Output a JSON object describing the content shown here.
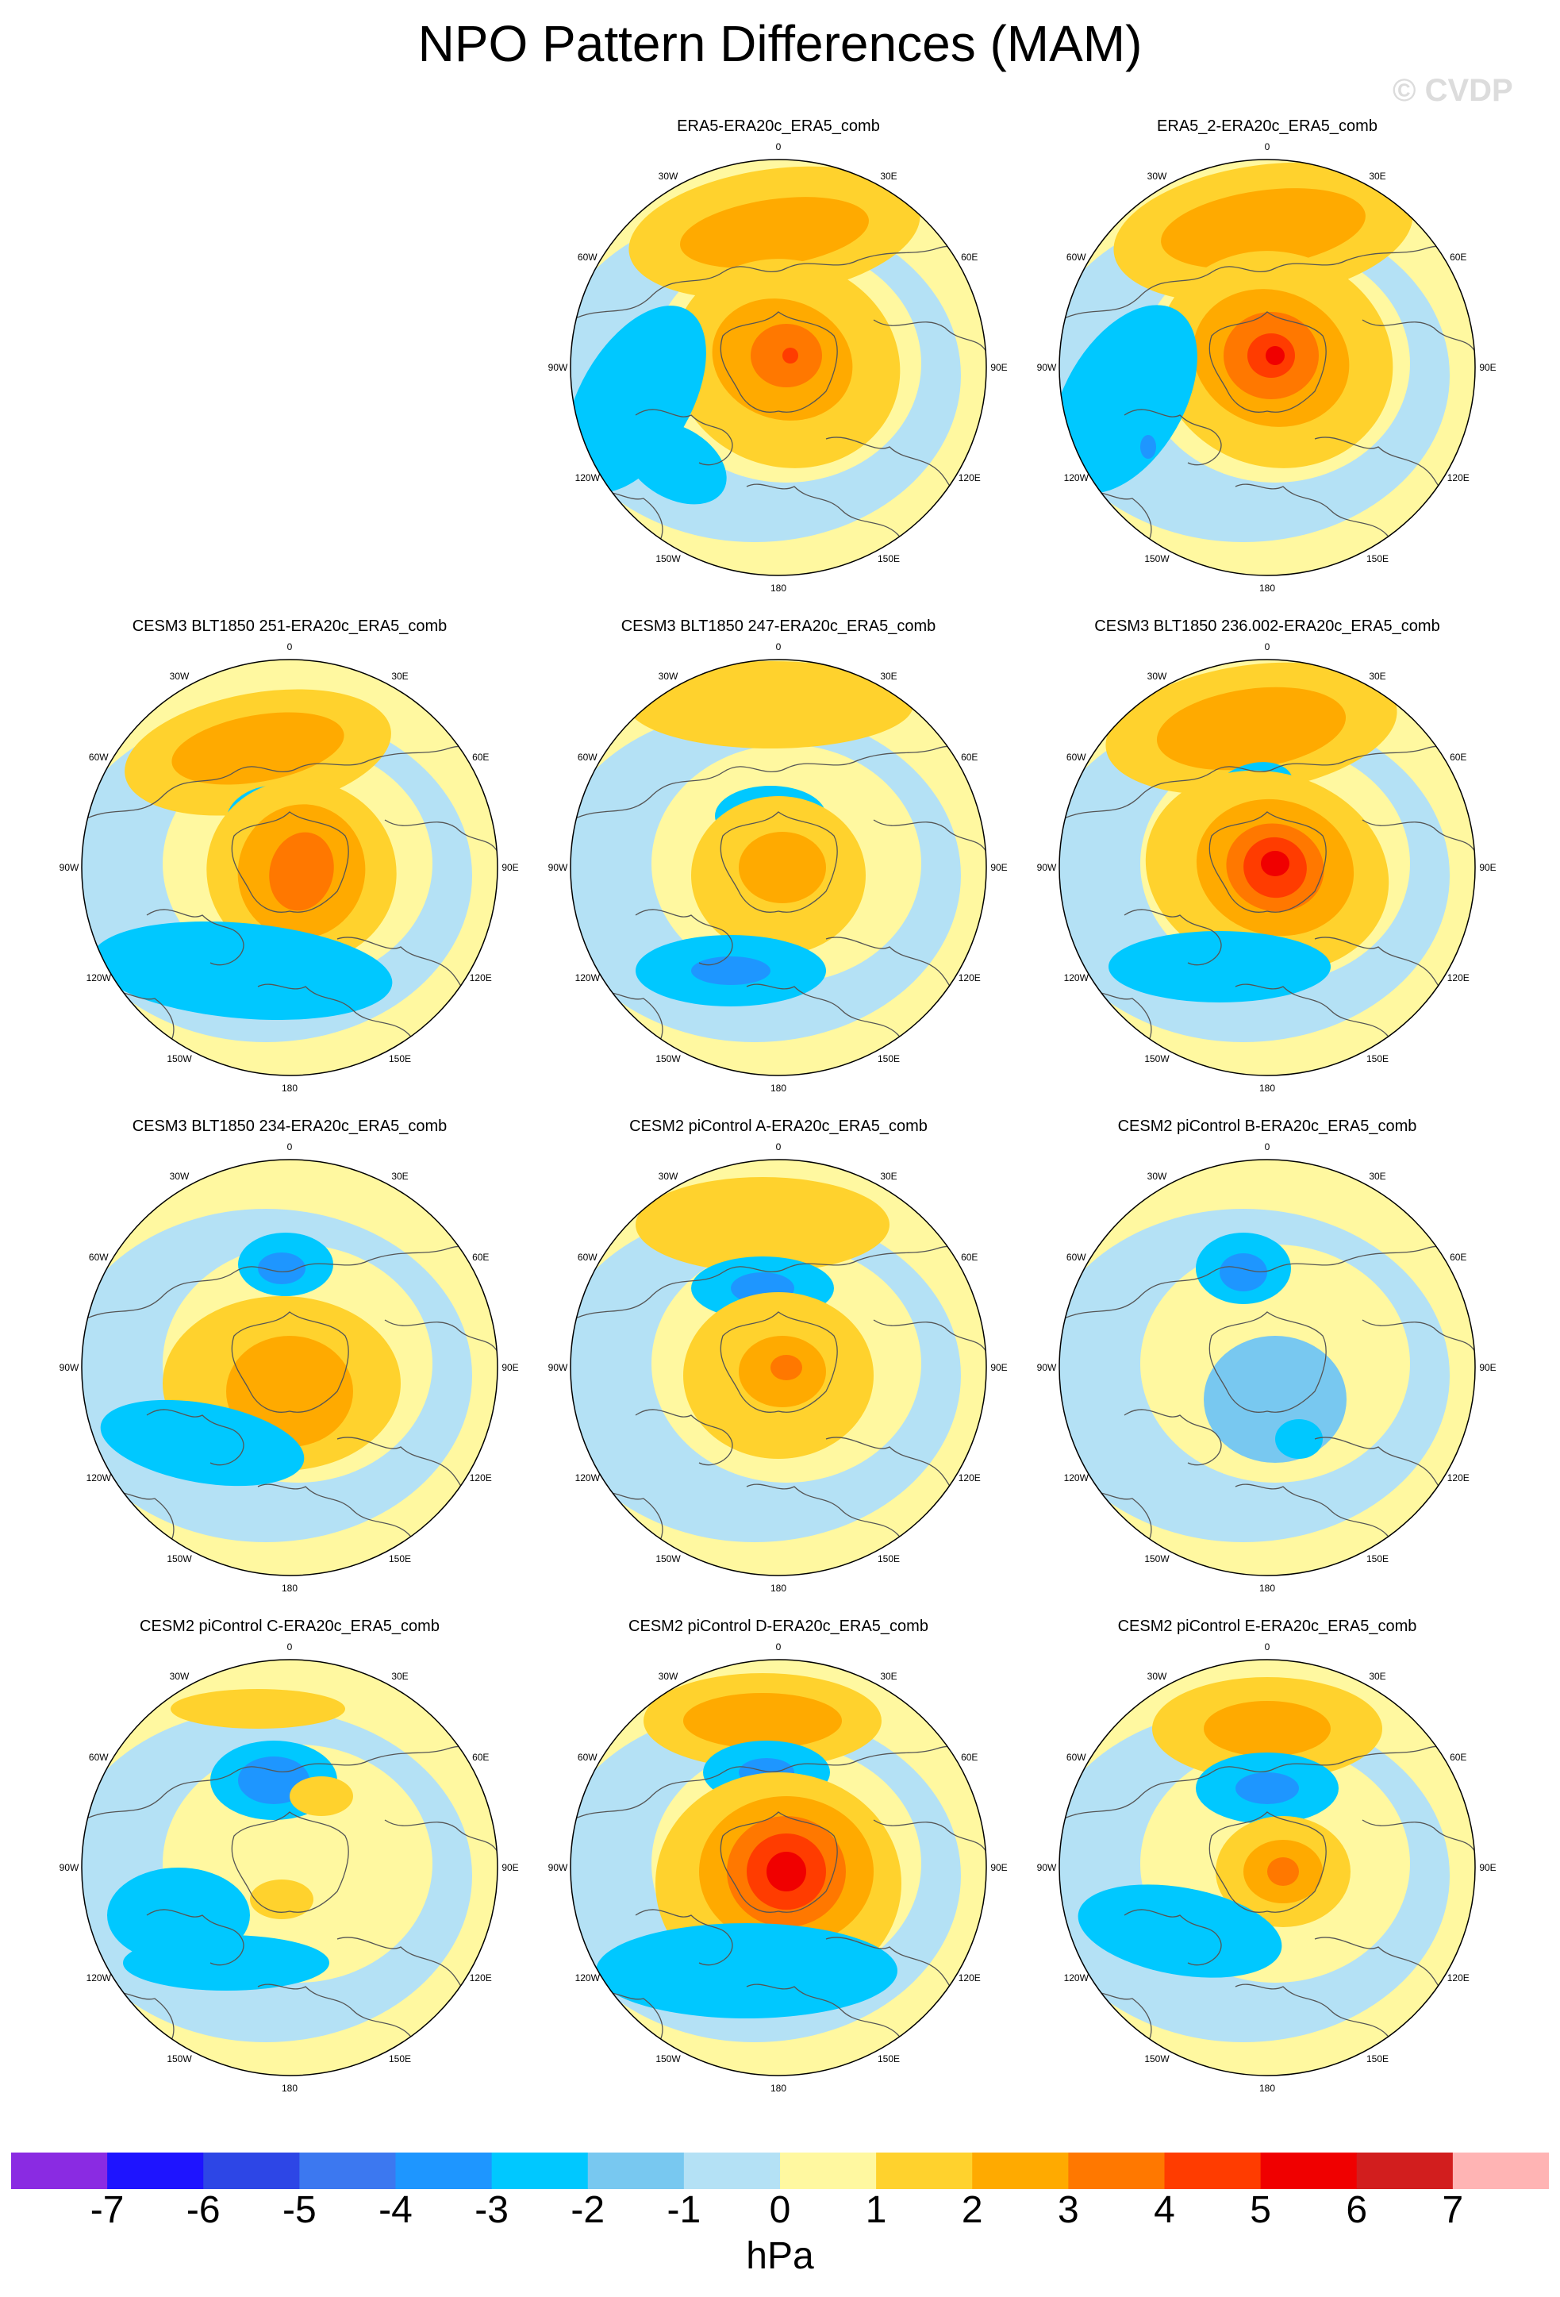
{
  "figure": {
    "title": "NPO Pattern Differences (MAM)",
    "watermark": "© CVDP",
    "units": "hPa"
  },
  "colorbar": {
    "levels": [
      "-7",
      "-6",
      "-5",
      "-4",
      "-3",
      "-2",
      "-1",
      "0",
      "1",
      "2",
      "3",
      "4",
      "5",
      "6",
      "7"
    ],
    "colors": [
      "#8a2be2",
      "#1e14ff",
      "#2d46e6",
      "#3c78f0",
      "#1e96ff",
      "#00c8ff",
      "#78c8f0",
      "#b4e1f5",
      "#fff8a0",
      "#ffd22d",
      "#ffaa00",
      "#ff7800",
      "#ff3c00",
      "#f00000",
      "#d21e1e",
      "#ffb4b4"
    ]
  },
  "map_labels": {
    "lon_labels": [
      "180",
      "150E",
      "120E",
      "90E",
      "60E",
      "30E",
      "0",
      "30W",
      "60W",
      "90W",
      "120W",
      "150W"
    ]
  },
  "panels": [
    {
      "title": "ERA5-ERA20c_ERA5_comb"
    },
    {
      "title": "ERA5_2-ERA20c_ERA5_comb"
    },
    {
      "title": "CESM3 BLT1850 251-ERA20c_ERA5_comb"
    },
    {
      "title": "CESM3 BLT1850 247-ERA20c_ERA5_comb"
    },
    {
      "title": "CESM3 BLT1850 236.002-ERA20c_ERA5_comb"
    },
    {
      "title": "CESM3 BLT1850 234-ERA20c_ERA5_comb"
    },
    {
      "title": "CESM2 piControl A-ERA20c_ERA5_comb"
    },
    {
      "title": "CESM2 piControl B-ERA20c_ERA5_comb"
    },
    {
      "title": "CESM2 piControl C-ERA20c_ERA5_comb"
    },
    {
      "title": "CESM2 piControl D-ERA20c_ERA5_comb"
    },
    {
      "title": "CESM2 piControl E-ERA20c_ERA5_comb"
    }
  ]
}
